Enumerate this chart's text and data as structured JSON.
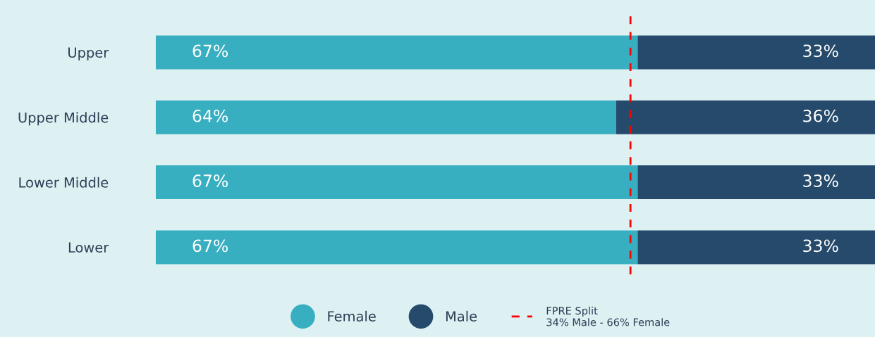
{
  "chart_data": {
    "type": "bar",
    "orientation": "horizontal",
    "stacked": true,
    "categories": [
      "Upper",
      "Upper Middle",
      "Lower Middle",
      "Lower"
    ],
    "series": [
      {
        "name": "Female",
        "color": "#38afc1",
        "values": [
          67,
          64,
          67,
          67
        ],
        "value_labels": [
          "67%",
          "64%",
          "67%",
          "67%"
        ]
      },
      {
        "name": "Male",
        "color": "#254a6b",
        "values": [
          33,
          36,
          33,
          33
        ],
        "value_labels": [
          "33%",
          "36%",
          "33%",
          "33%"
        ]
      }
    ],
    "xlim": [
      0,
      100
    ],
    "tick_labels": "y",
    "ref_lines": [
      {
        "axis": "x",
        "value": 66,
        "label": "FPRE Split\n34% Male - 66% Female",
        "color": "#ff0000",
        "line_style": "dashed"
      }
    ],
    "legend": "bottom",
    "grid": false
  }
}
